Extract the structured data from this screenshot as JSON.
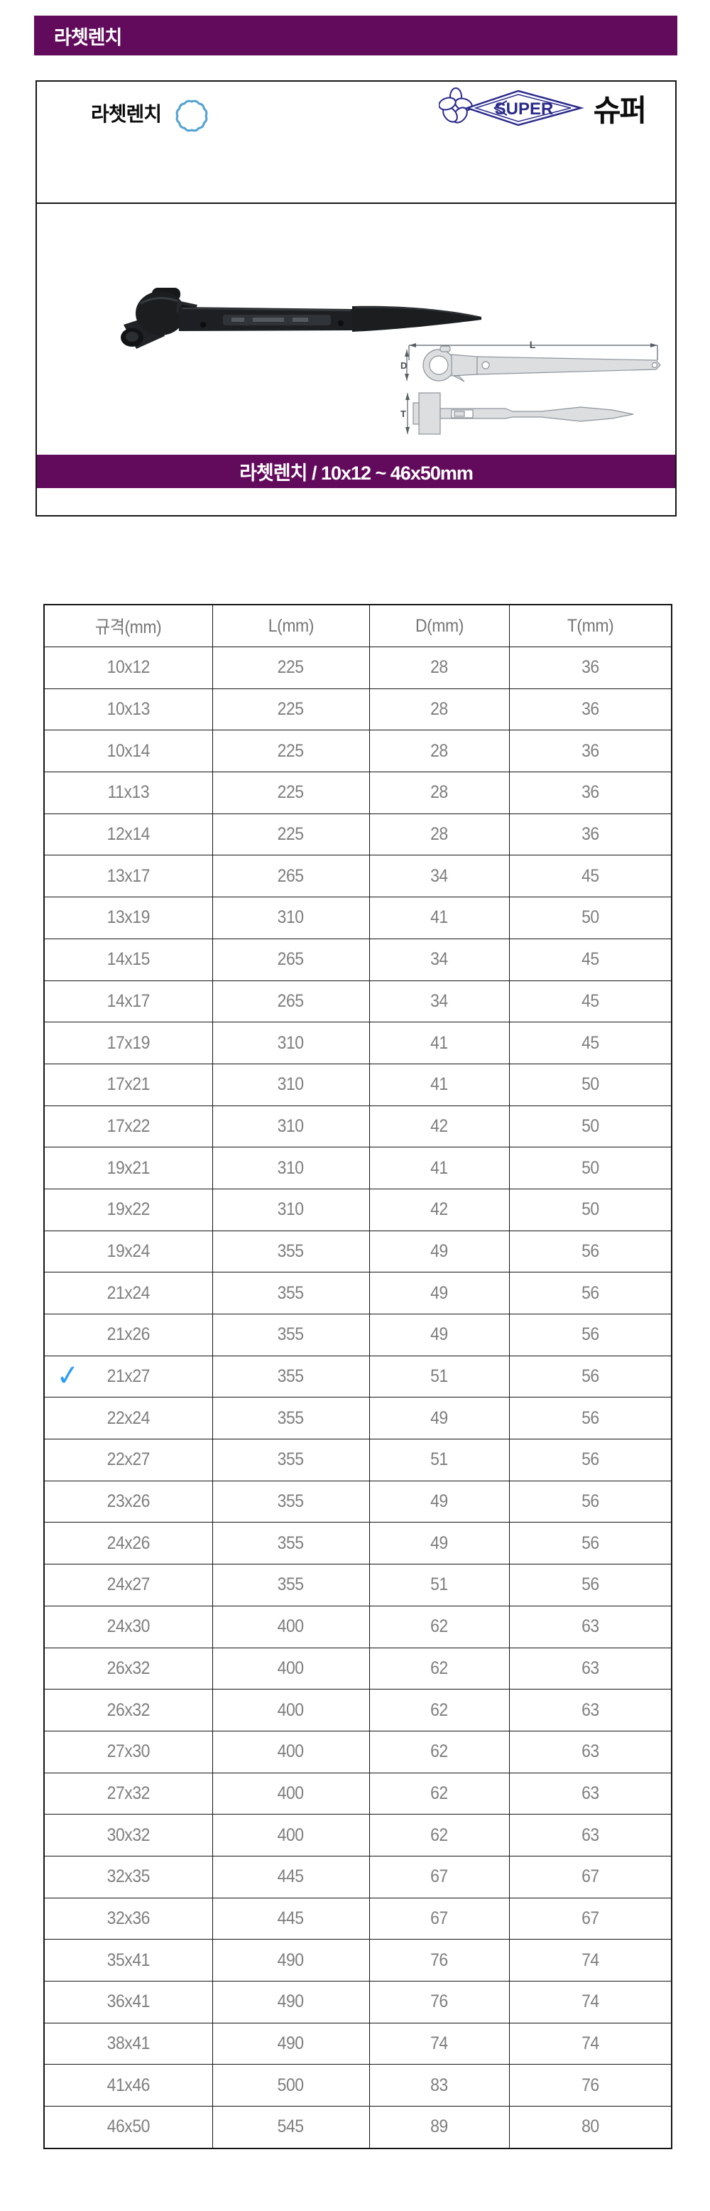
{
  "page": {
    "header_title": "라쳇렌치",
    "colors": {
      "accent_purple": "#620a5c",
      "check_blue": "#2e9df6",
      "ring_icon_blue": "#3f97cc",
      "logo_navy": "#2a2a8c",
      "table_line": "#141414",
      "cell_text_gray": "#7e7e7e"
    }
  },
  "product_card": {
    "title": "라쳇렌치",
    "brand": {
      "logo_text": "SUPER",
      "brand_name": "슈퍼"
    },
    "banner": "라쳇렌치 / 10x12 ~ 46x50mm",
    "diagram_labels": {
      "L": "L",
      "D": "D",
      "T": "T"
    }
  },
  "spec_table": {
    "columns": [
      "규격(mm)",
      "L(mm)",
      "D(mm)",
      "T(mm)"
    ],
    "checked_row": "21x27",
    "check_glyph": "✓",
    "rows": [
      [
        "10x12",
        "225",
        "28",
        "36"
      ],
      [
        "10x13",
        "225",
        "28",
        "36"
      ],
      [
        "10x14",
        "225",
        "28",
        "36"
      ],
      [
        "11x13",
        "225",
        "28",
        "36"
      ],
      [
        "12x14",
        "225",
        "28",
        "36"
      ],
      [
        "13x17",
        "265",
        "34",
        "45"
      ],
      [
        "13x19",
        "310",
        "41",
        "50"
      ],
      [
        "14x15",
        "265",
        "34",
        "45"
      ],
      [
        "14x17",
        "265",
        "34",
        "45"
      ],
      [
        "17x19",
        "310",
        "41",
        "45"
      ],
      [
        "17x21",
        "310",
        "41",
        "50"
      ],
      [
        "17x22",
        "310",
        "42",
        "50"
      ],
      [
        "19x21",
        "310",
        "41",
        "50"
      ],
      [
        "19x22",
        "310",
        "42",
        "50"
      ],
      [
        "19x24",
        "355",
        "49",
        "56"
      ],
      [
        "21x24",
        "355",
        "49",
        "56"
      ],
      [
        "21x26",
        "355",
        "49",
        "56"
      ],
      [
        "21x27",
        "355",
        "51",
        "56"
      ],
      [
        "22x24",
        "355",
        "49",
        "56"
      ],
      [
        "22x27",
        "355",
        "51",
        "56"
      ],
      [
        "23x26",
        "355",
        "49",
        "56"
      ],
      [
        "24x26",
        "355",
        "49",
        "56"
      ],
      [
        "24x27",
        "355",
        "51",
        "56"
      ],
      [
        "24x30",
        "400",
        "62",
        "63"
      ],
      [
        "26x32",
        "400",
        "62",
        "63"
      ],
      [
        "26x32",
        "400",
        "62",
        "63"
      ],
      [
        "27x30",
        "400",
        "62",
        "63"
      ],
      [
        "27x32",
        "400",
        "62",
        "63"
      ],
      [
        "30x32",
        "400",
        "62",
        "63"
      ],
      [
        "32x35",
        "445",
        "67",
        "67"
      ],
      [
        "32x36",
        "445",
        "67",
        "67"
      ],
      [
        "35x41",
        "490",
        "76",
        "74"
      ],
      [
        "36x41",
        "490",
        "76",
        "74"
      ],
      [
        "38x41",
        "490",
        "74",
        "74"
      ],
      [
        "41x46",
        "500",
        "83",
        "76"
      ],
      [
        "46x50",
        "545",
        "89",
        "80"
      ]
    ]
  }
}
